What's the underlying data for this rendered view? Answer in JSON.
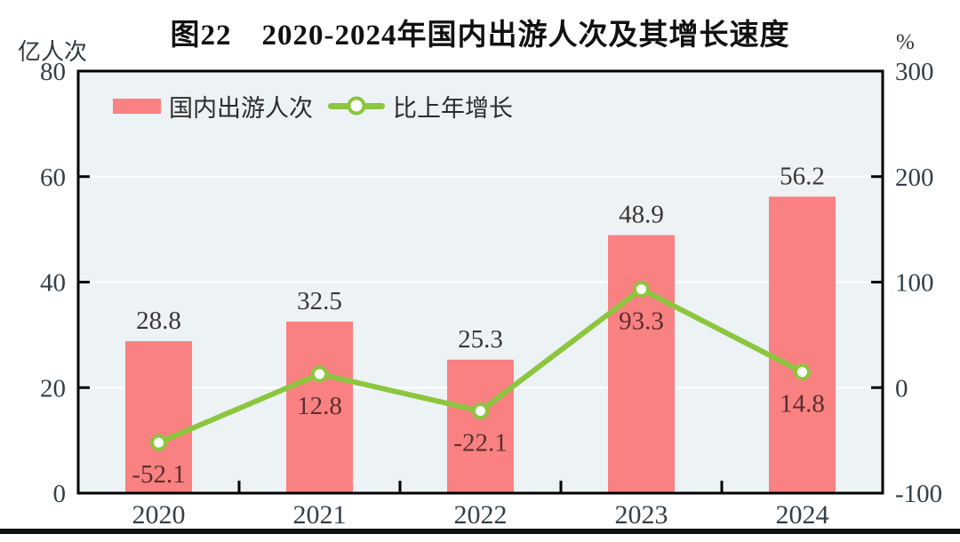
{
  "title": "图22　2020-2024年国内出游人次及其增长速度",
  "left_axis_unit": "亿人次",
  "right_axis_unit": "%",
  "legend": {
    "bar_label": "国内出游人次",
    "line_label": "比上年增长"
  },
  "chart_data": {
    "type": "bar",
    "categories": [
      "2020",
      "2021",
      "2022",
      "2023",
      "2024"
    ],
    "series": [
      {
        "name": "国内出游人次",
        "type": "bar",
        "axis": "left",
        "values": [
          28.8,
          32.5,
          25.3,
          48.9,
          56.2
        ]
      },
      {
        "name": "比上年增长",
        "type": "line",
        "axis": "right",
        "values": [
          -52.1,
          12.8,
          -22.1,
          93.3,
          14.8
        ]
      }
    ],
    "left_axis": {
      "label": "亿人次",
      "min": 0,
      "max": 80,
      "ticks": [
        0,
        20,
        40,
        60,
        80
      ]
    },
    "right_axis": {
      "label": "%",
      "min": -100,
      "max": 300,
      "ticks": [
        -100,
        0,
        100,
        200,
        300
      ]
    },
    "grid": true,
    "legend_position": "top-left-inside",
    "title": "图22　2020-2024年国内出游人次及其增长速度"
  },
  "colors": {
    "bar": "#f98181",
    "line": "#8cc63e",
    "marker_fill": "#ffffff",
    "plot_background": "#edf2f5",
    "gridline": "#ffffff",
    "axis_border": "#000000",
    "bar_value_label": "#3a3535",
    "growth_value_label": "#5a2e31",
    "axis_text": "#333e47",
    "title_text": "#111111"
  }
}
